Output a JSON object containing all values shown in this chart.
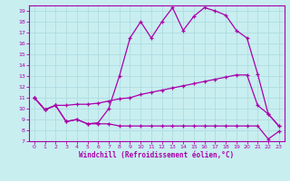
{
  "background_color": "#c8eef0",
  "grid_color": "#b0dde0",
  "line_color": "#aa00aa",
  "xlabel": "Windchill (Refroidissement éolien,°C)",
  "xlim": [
    -0.5,
    23.5
  ],
  "ylim": [
    7,
    19.5
  ],
  "yticks": [
    7,
    8,
    9,
    10,
    11,
    12,
    13,
    14,
    15,
    16,
    17,
    18,
    19
  ],
  "xticks": [
    0,
    1,
    2,
    3,
    4,
    5,
    6,
    7,
    8,
    9,
    10,
    11,
    12,
    13,
    14,
    15,
    16,
    17,
    18,
    19,
    20,
    21,
    22,
    23
  ],
  "series": [
    {
      "x": [
        0,
        1,
        2,
        3,
        4,
        5,
        6,
        7,
        8,
        9,
        10,
        11,
        12,
        13,
        14,
        15,
        16,
        17,
        18,
        19,
        20,
        21,
        22,
        23
      ],
      "y": [
        11.0,
        9.9,
        10.3,
        8.8,
        9.0,
        8.6,
        8.7,
        10.0,
        13.0,
        16.5,
        18.0,
        16.5,
        18.0,
        19.3,
        17.2,
        18.5,
        19.3,
        19.0,
        18.6,
        17.2,
        16.5,
        13.2,
        9.5,
        8.4
      ]
    },
    {
      "x": [
        0,
        1,
        2,
        3,
        4,
        5,
        6,
        7,
        8,
        9,
        10,
        11,
        12,
        13,
        14,
        15,
        16,
        17,
        18,
        19,
        20,
        21,
        22,
        23
      ],
      "y": [
        11.0,
        9.9,
        10.3,
        10.3,
        10.4,
        10.4,
        10.5,
        10.7,
        10.9,
        11.0,
        11.3,
        11.5,
        11.7,
        11.9,
        12.1,
        12.3,
        12.5,
        12.7,
        12.9,
        13.1,
        13.1,
        10.3,
        9.5,
        8.4
      ]
    },
    {
      "x": [
        0,
        1,
        2,
        3,
        4,
        5,
        6,
        7,
        8,
        9,
        10,
        11,
        12,
        13,
        14,
        15,
        16,
        17,
        18,
        19,
        20,
        21,
        22,
        23
      ],
      "y": [
        11.0,
        9.9,
        10.3,
        8.8,
        9.0,
        8.6,
        8.6,
        8.6,
        8.4,
        8.4,
        8.4,
        8.4,
        8.4,
        8.4,
        8.4,
        8.4,
        8.4,
        8.4,
        8.4,
        8.4,
        8.4,
        8.4,
        7.2,
        7.9
      ]
    }
  ]
}
